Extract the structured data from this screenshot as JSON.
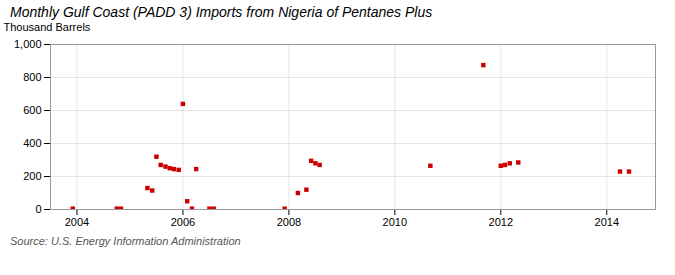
{
  "chart_data": {
    "type": "scatter",
    "title": "Monthly Gulf Coast (PADD 3) Imports from Nigeria of Pentanes Plus",
    "ylabel": "Thousand Barrels",
    "annotations": [
      "Source: U.S. Energy Information Administration"
    ],
    "x": [
      2003.92,
      2004.75,
      2004.83,
      2005.33,
      2005.42,
      2005.5,
      2005.58,
      2005.67,
      2005.75,
      2005.83,
      2005.92,
      2006.0,
      2006.08,
      2006.17,
      2006.25,
      2006.5,
      2006.58,
      2007.92,
      2008.17,
      2008.33,
      2008.42,
      2008.5,
      2008.58,
      2010.67,
      2011.67,
      2012.0,
      2012.08,
      2012.17,
      2012.33,
      2014.25,
      2014.42
    ],
    "values": [
      5,
      5,
      5,
      130,
      115,
      320,
      270,
      260,
      250,
      245,
      240,
      640,
      50,
      5,
      245,
      5,
      5,
      5,
      100,
      120,
      295,
      280,
      270,
      265,
      875,
      265,
      270,
      280,
      285,
      230,
      230
    ],
    "color": "#cc0000",
    "marker": "square",
    "xlim": [
      2003.5,
      2014.92
    ],
    "xticks": [
      2004,
      2006,
      2008,
      2010,
      2012,
      2014
    ],
    "ylim": [
      0,
      1000
    ],
    "yticks": [
      0,
      200,
      400,
      600,
      800,
      {
        "value": 1000,
        "label": "1,000"
      }
    ],
    "grid": true
  }
}
